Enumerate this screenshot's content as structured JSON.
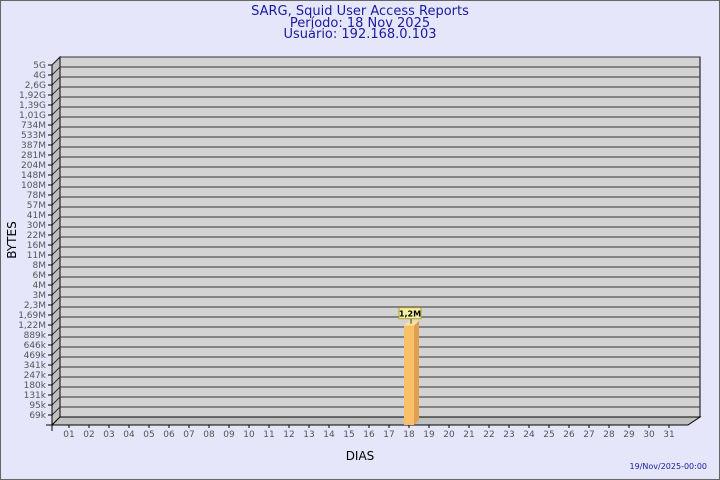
{
  "header": {
    "title": "SARG, Squid User Access Reports",
    "period": "Período: 18 Nov 2025",
    "user": "Usuário: 192.168.0.103"
  },
  "footer": {
    "timestamp": "19/Nov/2025-00:00"
  },
  "chart_data": {
    "type": "bar",
    "title": "SARG, Squid User Access Reports",
    "xlabel": "DIAS",
    "ylabel": "BYTES",
    "y_scale": "log",
    "grid": true,
    "y_ticks": [
      "5G",
      "4G",
      "2,6G",
      "1,92G",
      "1,39G",
      "1,01G",
      "734M",
      "533M",
      "387M",
      "281M",
      "204M",
      "148M",
      "108M",
      "78M",
      "57M",
      "41M",
      "30M",
      "22M",
      "16M",
      "11M",
      "8M",
      "6M",
      "4M",
      "3M",
      "2,3M",
      "1,69M",
      "1,22M",
      "889k",
      "646k",
      "469k",
      "341k",
      "247k",
      "180k",
      "131k",
      "95k",
      "69k"
    ],
    "categories": [
      "01",
      "02",
      "03",
      "04",
      "05",
      "06",
      "07",
      "08",
      "09",
      "10",
      "11",
      "12",
      "13",
      "14",
      "15",
      "16",
      "17",
      "18",
      "19",
      "20",
      "21",
      "22",
      "23",
      "24",
      "25",
      "26",
      "27",
      "28",
      "29",
      "30",
      "31"
    ],
    "values": [
      null,
      null,
      null,
      null,
      null,
      null,
      null,
      null,
      null,
      null,
      null,
      null,
      null,
      null,
      null,
      null,
      null,
      1200000,
      null,
      null,
      null,
      null,
      null,
      null,
      null,
      null,
      null,
      null,
      null,
      null,
      null
    ],
    "data_labels": {
      "18": "1,2M"
    },
    "colors": {
      "bar": "#f9c06a",
      "bar_side": "#e0a050",
      "bar_top": "#fde09a",
      "panel": "#d3d3d3",
      "wall": "#c0c0c0",
      "label_bg": "#f5f0a0"
    }
  }
}
